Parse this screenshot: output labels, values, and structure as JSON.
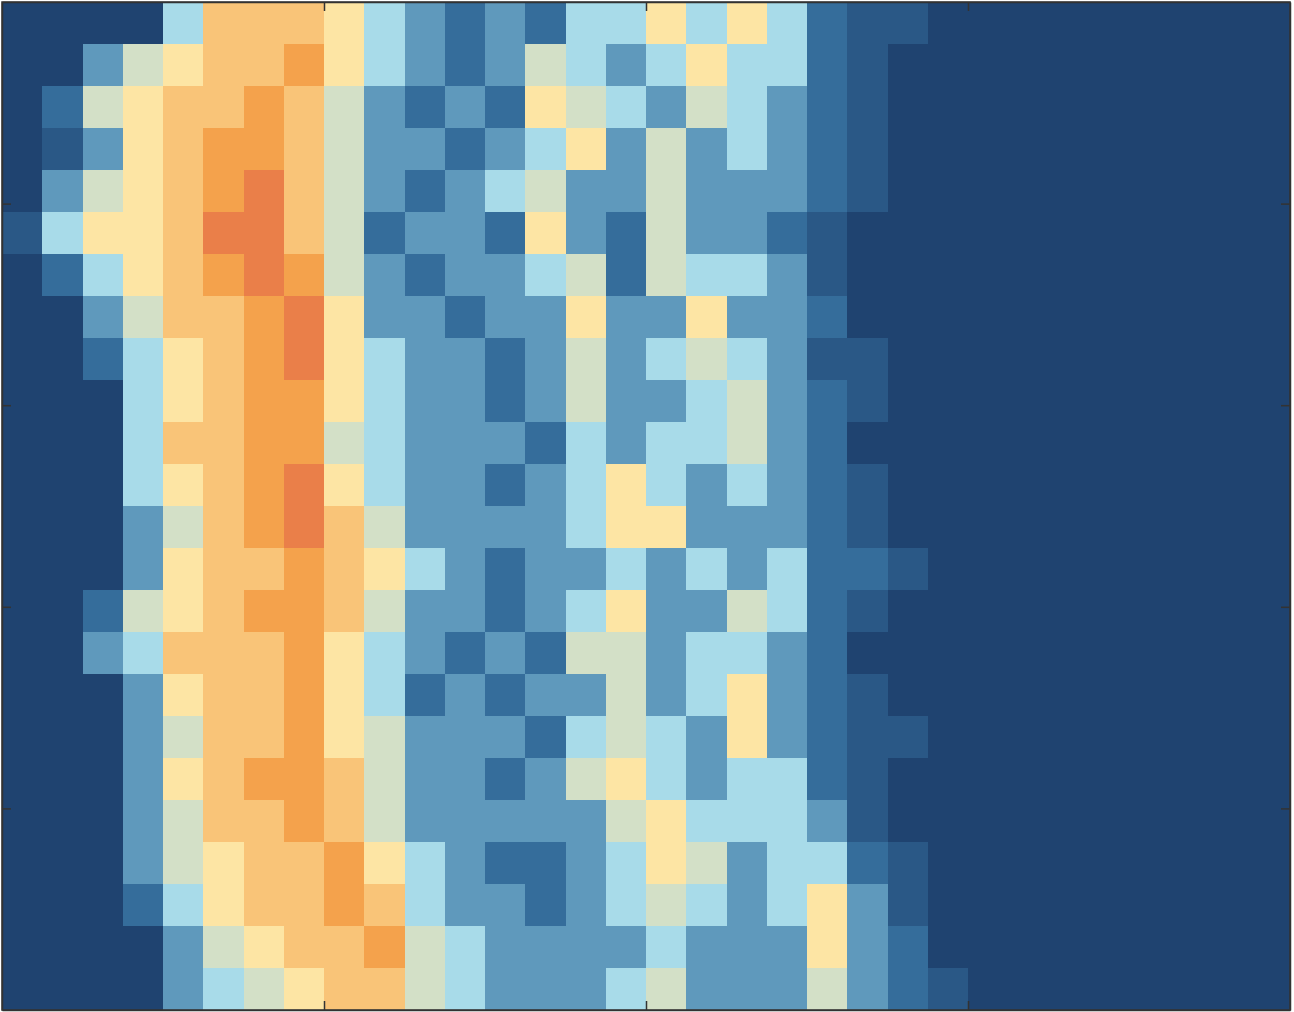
{
  "chart_data": {
    "type": "heatmap",
    "xlim": [
      0,
      4
    ],
    "xticks": [
      1,
      2,
      3
    ],
    "ylim": [
      0,
      5
    ],
    "yticks": [
      1,
      2,
      3,
      4
    ],
    "tick_labels": false,
    "zlim": [
      0,
      10
    ],
    "z": [
      [
        0,
        0,
        0,
        0,
        4,
        7,
        7,
        7,
        6,
        4,
        3,
        2,
        3,
        2,
        4,
        4,
        6,
        4,
        6,
        4,
        2,
        1,
        1,
        0,
        0,
        0,
        0,
        0,
        0,
        0,
        0,
        0
      ],
      [
        0,
        0,
        3,
        5,
        6,
        7,
        7,
        8,
        6,
        4,
        3,
        2,
        3,
        5,
        4,
        3,
        4,
        6,
        4,
        4,
        2,
        1,
        0,
        0,
        0,
        0,
        0,
        0,
        0,
        0,
        0,
        0
      ],
      [
        0,
        2,
        5,
        6,
        7,
        7,
        8,
        7,
        5,
        3,
        2,
        3,
        2,
        6,
        5,
        4,
        3,
        5,
        4,
        3,
        2,
        1,
        0,
        0,
        0,
        0,
        0,
        0,
        0,
        0,
        0,
        0
      ],
      [
        0,
        1,
        3,
        6,
        7,
        8,
        8,
        7,
        5,
        3,
        3,
        2,
        3,
        4,
        6,
        3,
        5,
        3,
        4,
        3,
        2,
        1,
        0,
        0,
        0,
        0,
        0,
        0,
        0,
        0,
        0,
        0
      ],
      [
        0,
        3,
        5,
        6,
        7,
        8,
        9,
        7,
        5,
        3,
        2,
        3,
        4,
        5,
        3,
        3,
        5,
        3,
        3,
        3,
        2,
        1,
        0,
        0,
        0,
        0,
        0,
        0,
        0,
        0,
        0,
        0
      ],
      [
        1,
        4,
        6,
        6,
        7,
        9,
        9,
        7,
        5,
        2,
        3,
        3,
        2,
        6,
        3,
        2,
        5,
        3,
        3,
        2,
        1,
        0,
        0,
        0,
        0,
        0,
        0,
        0,
        0,
        0,
        0,
        0
      ],
      [
        0,
        2,
        4,
        6,
        7,
        8,
        9,
        8,
        5,
        3,
        2,
        3,
        3,
        4,
        5,
        2,
        5,
        4,
        4,
        3,
        1,
        0,
        0,
        0,
        0,
        0,
        0,
        0,
        0,
        0,
        0,
        0
      ],
      [
        0,
        0,
        3,
        5,
        7,
        7,
        8,
        9,
        6,
        3,
        3,
        2,
        3,
        3,
        6,
        3,
        3,
        6,
        3,
        3,
        2,
        0,
        0,
        0,
        0,
        0,
        0,
        0,
        0,
        0,
        0,
        0
      ],
      [
        0,
        0,
        2,
        4,
        6,
        7,
        8,
        9,
        6,
        4,
        3,
        3,
        2,
        3,
        5,
        3,
        4,
        5,
        4,
        3,
        1,
        1,
        0,
        0,
        0,
        0,
        0,
        0,
        0,
        0,
        0,
        0
      ],
      [
        0,
        0,
        0,
        4,
        6,
        7,
        8,
        8,
        6,
        4,
        3,
        3,
        2,
        3,
        5,
        3,
        3,
        4,
        5,
        3,
        2,
        1,
        0,
        0,
        0,
        0,
        0,
        0,
        0,
        0,
        0,
        0
      ],
      [
        0,
        0,
        0,
        4,
        7,
        7,
        8,
        8,
        5,
        4,
        3,
        3,
        3,
        2,
        4,
        3,
        4,
        4,
        5,
        3,
        2,
        0,
        0,
        0,
        0,
        0,
        0,
        0,
        0,
        0,
        0,
        0
      ],
      [
        0,
        0,
        0,
        4,
        6,
        7,
        8,
        9,
        6,
        4,
        3,
        3,
        2,
        3,
        4,
        6,
        4,
        3,
        4,
        3,
        2,
        1,
        0,
        0,
        0,
        0,
        0,
        0,
        0,
        0,
        0,
        0
      ],
      [
        0,
        0,
        0,
        3,
        5,
        7,
        8,
        9,
        7,
        5,
        3,
        3,
        3,
        3,
        4,
        6,
        6,
        3,
        3,
        3,
        2,
        1,
        0,
        0,
        0,
        0,
        0,
        0,
        0,
        0,
        0,
        0
      ],
      [
        0,
        0,
        0,
        3,
        6,
        7,
        7,
        8,
        7,
        6,
        4,
        3,
        2,
        3,
        3,
        4,
        3,
        4,
        3,
        4,
        2,
        2,
        1,
        0,
        0,
        0,
        0,
        0,
        0,
        0,
        0,
        0
      ],
      [
        0,
        0,
        2,
        5,
        6,
        7,
        8,
        8,
        7,
        5,
        3,
        3,
        2,
        3,
        4,
        6,
        3,
        3,
        5,
        4,
        2,
        1,
        0,
        0,
        0,
        0,
        0,
        0,
        0,
        0,
        0,
        0
      ],
      [
        0,
        0,
        3,
        4,
        7,
        7,
        7,
        8,
        6,
        4,
        3,
        2,
        3,
        2,
        5,
        5,
        3,
        4,
        4,
        3,
        2,
        0,
        0,
        0,
        0,
        0,
        0,
        0,
        0,
        0,
        0,
        0
      ],
      [
        0,
        0,
        0,
        3,
        6,
        7,
        7,
        8,
        6,
        4,
        2,
        3,
        2,
        3,
        3,
        5,
        3,
        4,
        6,
        3,
        2,
        1,
        0,
        0,
        0,
        0,
        0,
        0,
        0,
        0,
        0,
        0
      ],
      [
        0,
        0,
        0,
        3,
        5,
        7,
        7,
        8,
        6,
        5,
        3,
        3,
        3,
        2,
        4,
        5,
        4,
        3,
        6,
        3,
        2,
        1,
        1,
        0,
        0,
        0,
        0,
        0,
        0,
        0,
        0,
        0
      ],
      [
        0,
        0,
        0,
        3,
        6,
        7,
        8,
        8,
        7,
        5,
        3,
        3,
        2,
        3,
        5,
        6,
        4,
        3,
        4,
        4,
        2,
        1,
        0,
        0,
        0,
        0,
        0,
        0,
        0,
        0,
        0,
        0
      ],
      [
        0,
        0,
        0,
        3,
        5,
        7,
        7,
        8,
        7,
        5,
        3,
        3,
        3,
        3,
        3,
        5,
        6,
        4,
        4,
        4,
        3,
        1,
        0,
        0,
        0,
        0,
        0,
        0,
        0,
        0,
        0,
        0
      ],
      [
        0,
        0,
        0,
        3,
        5,
        6,
        7,
        7,
        8,
        6,
        4,
        3,
        2,
        2,
        3,
        4,
        6,
        5,
        3,
        4,
        4,
        2,
        1,
        0,
        0,
        0,
        0,
        0,
        0,
        0,
        0,
        0
      ],
      [
        0,
        0,
        0,
        2,
        4,
        6,
        7,
        7,
        8,
        7,
        4,
        3,
        3,
        2,
        3,
        4,
        5,
        4,
        3,
        4,
        6,
        3,
        1,
        0,
        0,
        0,
        0,
        0,
        0,
        0,
        0,
        0
      ],
      [
        0,
        0,
        0,
        0,
        3,
        5,
        6,
        7,
        7,
        8,
        5,
        4,
        3,
        3,
        3,
        3,
        4,
        3,
        3,
        3,
        6,
        3,
        2,
        0,
        0,
        0,
        0,
        0,
        0,
        0,
        0,
        0
      ],
      [
        0,
        0,
        0,
        0,
        3,
        4,
        5,
        6,
        7,
        7,
        5,
        4,
        3,
        3,
        3,
        4,
        5,
        3,
        3,
        3,
        5,
        3,
        2,
        1,
        0,
        0,
        0,
        0,
        0,
        0,
        0,
        0
      ]
    ]
  }
}
